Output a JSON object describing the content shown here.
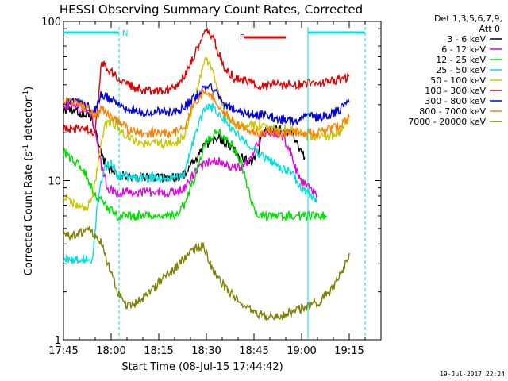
{
  "chart_data": {
    "type": "line",
    "title": "HESSI Observing Summary Count Rates, Corrected",
    "xlabel": "Start Time (08-Jul-15 17:44:42)",
    "ylabel_main": "Corrected Count Rate (s",
    "ylabel_sup": "-1",
    "ylabel_mid": " detector",
    "ylabel_end": ")",
    "yscale": "log",
    "ylim": [
      1,
      100
    ],
    "xlim_minutes": [
      0,
      100
    ],
    "x_ticks": [
      {
        "label": "17:45",
        "minute": 0
      },
      {
        "label": "18:00",
        "minute": 15
      },
      {
        "label": "18:15",
        "minute": 30
      },
      {
        "label": "18:30",
        "minute": 45
      },
      {
        "label": "18:45",
        "minute": 60
      },
      {
        "label": "19:00",
        "minute": 75
      },
      {
        "label": "19:15",
        "minute": 90
      }
    ],
    "y_tick_labels": [
      {
        "label": "1",
        "value": 1
      },
      {
        "label": "10",
        "value": 10
      },
      {
        "label": "100",
        "value": 100
      }
    ],
    "legend_header": [
      "Det 1,3,5,6,7,9,",
      "Att 0"
    ],
    "legend_position": "right",
    "timestamp": "19-Jul-2017 22:24",
    "flags": {
      "saa_label": "N",
      "flare_label": "F",
      "night_bars_color": "#00e0e0",
      "flare_bar_color": "#e00000"
    },
    "series": [
      {
        "name": "3 - 6 keV",
        "color": "#000000",
        "points": [
          [
            0,
            28
          ],
          [
            4,
            27
          ],
          [
            9,
            25
          ],
          [
            12,
            14
          ],
          [
            14,
            12
          ],
          [
            17,
            11
          ],
          [
            20,
            10.5
          ],
          [
            25,
            10.5
          ],
          [
            30,
            10.5
          ],
          [
            35,
            10.5
          ],
          [
            38,
            11
          ],
          [
            41,
            13
          ],
          [
            45,
            17
          ],
          [
            49,
            18.5
          ],
          [
            52,
            17
          ],
          [
            56,
            14
          ],
          [
            59,
            13
          ],
          [
            61,
            15
          ],
          [
            63,
            20
          ],
          [
            66,
            21
          ],
          [
            69,
            21
          ],
          [
            72,
            20
          ],
          [
            74,
            16
          ],
          [
            76,
            14
          ]
        ]
      },
      {
        "name": "6 - 12 keV",
        "color": "#e000e0",
        "points": [
          [
            0,
            30
          ],
          [
            4,
            29
          ],
          [
            9,
            26
          ],
          [
            12,
            12
          ],
          [
            14,
            9
          ],
          [
            17,
            8.5
          ],
          [
            20,
            8.5
          ],
          [
            25,
            8.5
          ],
          [
            30,
            8.5
          ],
          [
            35,
            8.5
          ],
          [
            38,
            9
          ],
          [
            41,
            11
          ],
          [
            45,
            13
          ],
          [
            49,
            13.5
          ],
          [
            52,
            12.5
          ],
          [
            56,
            12
          ],
          [
            59,
            14
          ],
          [
            62,
            19
          ],
          [
            64,
            20
          ],
          [
            66,
            20
          ],
          [
            69,
            19
          ],
          [
            71,
            16
          ],
          [
            73,
            12
          ],
          [
            75,
            10
          ],
          [
            77,
            9
          ],
          [
            80,
            8
          ]
        ]
      },
      {
        "name": "12 - 25 keV",
        "color": "#00e000",
        "points": [
          [
            0,
            15
          ],
          [
            4,
            13
          ],
          [
            7,
            11
          ],
          [
            10,
            8
          ],
          [
            13,
            7
          ],
          [
            17,
            6
          ],
          [
            20,
            6
          ],
          [
            25,
            6
          ],
          [
            30,
            6
          ],
          [
            35,
            6
          ],
          [
            38,
            7
          ],
          [
            41,
            10
          ],
          [
            45,
            18
          ],
          [
            49,
            20
          ],
          [
            52,
            18
          ],
          [
            56,
            13
          ],
          [
            58,
            9
          ],
          [
            60,
            6.5
          ],
          [
            63,
            6
          ],
          [
            66,
            6
          ],
          [
            69,
            6
          ],
          [
            72,
            6
          ],
          [
            75,
            6
          ],
          [
            77,
            6
          ],
          [
            80,
            6
          ],
          [
            83,
            6
          ]
        ]
      },
      {
        "name": "25 - 50 keV",
        "color": "#00e0e0",
        "points": [
          [
            0,
            3.2
          ],
          [
            4,
            3.2
          ],
          [
            7,
            3.2
          ],
          [
            9,
            3.2
          ],
          [
            11,
            8
          ],
          [
            13,
            12
          ],
          [
            15,
            13
          ],
          [
            17,
            11
          ],
          [
            20,
            10.5
          ],
          [
            25,
            10.5
          ],
          [
            30,
            10.5
          ],
          [
            35,
            10.5
          ],
          [
            38,
            11
          ],
          [
            41,
            18
          ],
          [
            43,
            24
          ],
          [
            45,
            30
          ],
          [
            48,
            28
          ],
          [
            51,
            24
          ],
          [
            54,
            20
          ],
          [
            57,
            18
          ],
          [
            60,
            16
          ],
          [
            63,
            14
          ],
          [
            66,
            13
          ],
          [
            69,
            12
          ],
          [
            72,
            11
          ],
          [
            75,
            9
          ],
          [
            78,
            8
          ],
          [
            80,
            7.5
          ]
        ]
      },
      {
        "name": "50 - 100 keV",
        "color": "#c8c800",
        "points": [
          [
            0,
            8
          ],
          [
            4,
            7
          ],
          [
            7,
            6.5
          ],
          [
            9,
            8
          ],
          [
            10,
            10
          ],
          [
            13,
            22
          ],
          [
            15,
            24
          ],
          [
            17,
            22
          ],
          [
            20,
            19
          ],
          [
            25,
            17
          ],
          [
            30,
            17
          ],
          [
            35,
            17
          ],
          [
            38,
            19
          ],
          [
            41,
            30
          ],
          [
            43,
            45
          ],
          [
            45,
            58
          ],
          [
            47,
            48
          ],
          [
            49,
            35
          ],
          [
            51,
            27
          ],
          [
            54,
            22
          ],
          [
            58,
            22
          ],
          [
            62,
            22
          ],
          [
            66,
            21
          ],
          [
            70,
            21
          ],
          [
            74,
            20
          ],
          [
            77,
            19
          ],
          [
            80,
            19
          ],
          [
            84,
            19
          ],
          [
            87,
            20
          ],
          [
            90,
            25
          ]
        ]
      },
      {
        "name": "100 - 300 keV",
        "color": "#e00000",
        "points": [
          [
            0,
            21
          ],
          [
            4,
            21
          ],
          [
            8,
            21
          ],
          [
            10,
            20
          ],
          [
            12,
            55
          ],
          [
            14,
            50
          ],
          [
            17,
            45
          ],
          [
            20,
            40
          ],
          [
            25,
            37
          ],
          [
            30,
            37
          ],
          [
            35,
            38
          ],
          [
            38,
            45
          ],
          [
            41,
            60
          ],
          [
            43,
            72
          ],
          [
            45,
            90
          ],
          [
            47,
            80
          ],
          [
            49,
            62
          ],
          [
            51,
            50
          ],
          [
            54,
            44
          ],
          [
            58,
            42
          ],
          [
            62,
            40
          ],
          [
            66,
            40
          ],
          [
            70,
            40
          ],
          [
            74,
            40
          ],
          [
            77,
            41
          ],
          [
            80,
            40
          ],
          [
            84,
            42
          ],
          [
            87,
            43
          ],
          [
            90,
            45
          ]
        ]
      },
      {
        "name": "300 - 800 keV",
        "color": "#0000e0",
        "points": [
          [
            0,
            31
          ],
          [
            4,
            31
          ],
          [
            8,
            29
          ],
          [
            10,
            28
          ],
          [
            12,
            35
          ],
          [
            14,
            33
          ],
          [
            17,
            31
          ],
          [
            20,
            28
          ],
          [
            25,
            27
          ],
          [
            30,
            27
          ],
          [
            35,
            27
          ],
          [
            38,
            29
          ],
          [
            41,
            33
          ],
          [
            43,
            36
          ],
          [
            45,
            40
          ],
          [
            47,
            38
          ],
          [
            49,
            34
          ],
          [
            51,
            30
          ],
          [
            54,
            28
          ],
          [
            58,
            26
          ],
          [
            62,
            26
          ],
          [
            66,
            25
          ],
          [
            70,
            24
          ],
          [
            74,
            24
          ],
          [
            77,
            25
          ],
          [
            80,
            25
          ],
          [
            84,
            26
          ],
          [
            87,
            28
          ],
          [
            90,
            31
          ]
        ]
      },
      {
        "name": "800 - 7000 keV",
        "color": "#ff8000",
        "points": [
          [
            0,
            32
          ],
          [
            4,
            31
          ],
          [
            8,
            28
          ],
          [
            10,
            25
          ],
          [
            12,
            28
          ],
          [
            14,
            26
          ],
          [
            17,
            24
          ],
          [
            20,
            21
          ],
          [
            25,
            20
          ],
          [
            30,
            20
          ],
          [
            35,
            20
          ],
          [
            38,
            22
          ],
          [
            41,
            30
          ],
          [
            43,
            34
          ],
          [
            45,
            37
          ],
          [
            47,
            34
          ],
          [
            49,
            30
          ],
          [
            51,
            26
          ],
          [
            54,
            23
          ],
          [
            58,
            21
          ],
          [
            62,
            20
          ],
          [
            66,
            20
          ],
          [
            70,
            20
          ],
          [
            74,
            20
          ],
          [
            77,
            20
          ],
          [
            80,
            20
          ],
          [
            84,
            21
          ],
          [
            87,
            22
          ],
          [
            90,
            25
          ]
        ]
      },
      {
        "name": "7000 - 20000 keV",
        "color": "#808000",
        "points": [
          [
            0,
            4.5
          ],
          [
            4,
            4.5
          ],
          [
            8,
            5
          ],
          [
            10,
            4.5
          ],
          [
            12,
            4
          ],
          [
            14,
            3
          ],
          [
            17,
            2
          ],
          [
            20,
            1.6
          ],
          [
            25,
            1.8
          ],
          [
            30,
            2.3
          ],
          [
            35,
            2.8
          ],
          [
            40,
            3.5
          ],
          [
            44,
            4
          ],
          [
            46,
            3
          ],
          [
            48,
            2.5
          ],
          [
            52,
            2
          ],
          [
            56,
            1.7
          ],
          [
            60,
            1.5
          ],
          [
            64,
            1.4
          ],
          [
            68,
            1.4
          ],
          [
            72,
            1.5
          ],
          [
            76,
            1.6
          ],
          [
            80,
            1.7
          ],
          [
            84,
            2
          ],
          [
            87,
            2.5
          ],
          [
            90,
            3.5
          ]
        ]
      }
    ]
  }
}
